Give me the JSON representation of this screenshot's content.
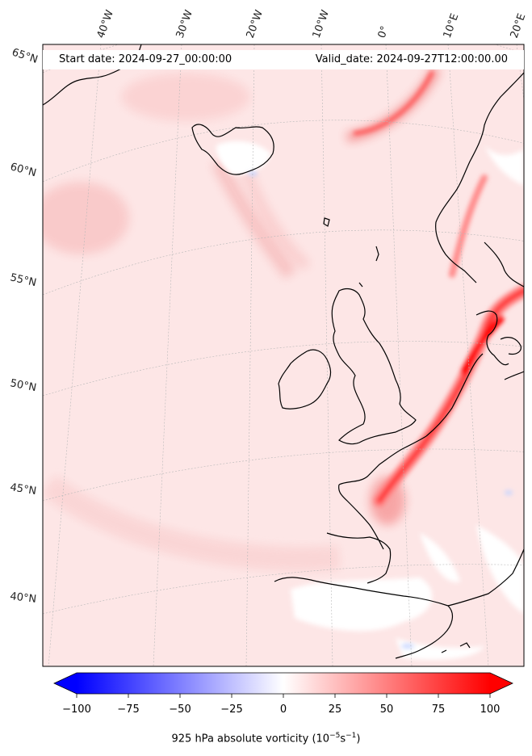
{
  "header": {
    "start_date": "Start date: 2024-09-27_00:00:00",
    "valid_date": "Valid_date: 2024-09-27T12:00:00.00"
  },
  "longitude_labels": [
    "40°W",
    "30°W",
    "20°W",
    "10°W",
    "0°",
    "10°E",
    "20°E"
  ],
  "latitude_labels": [
    "65°N",
    "60°N",
    "55°N",
    "50°N",
    "45°N",
    "40°N"
  ],
  "colorbar": {
    "ticks": [
      "−100",
      "−75",
      "−50",
      "−25",
      "0",
      "25",
      "50",
      "75",
      "100"
    ],
    "label_main": "925 hPa absolute vorticity (10",
    "label_exp1": "−5",
    "label_mid": "s",
    "label_exp2": "−1",
    "label_end": ")",
    "range": [
      -100,
      100
    ],
    "colormap": "bwr",
    "extend": "both"
  },
  "colors": {
    "negative": "#0000ff",
    "zero": "#ffffff",
    "positive": "#ff0000",
    "coastline": "#000000"
  }
}
